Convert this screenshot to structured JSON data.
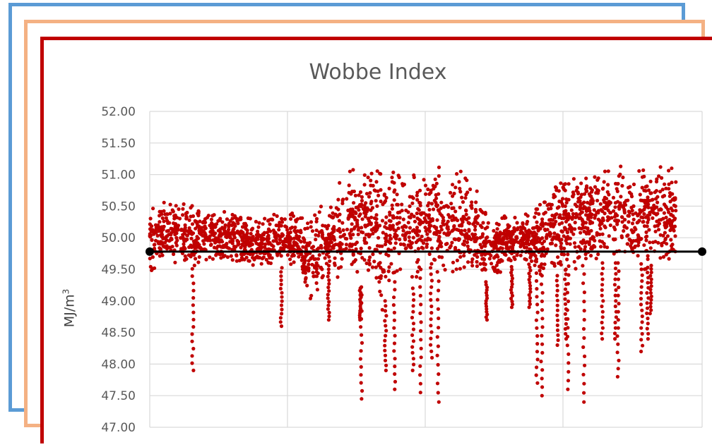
{
  "colors": {
    "frame_back": "#5b9bd5",
    "frame_middle": "#f4b183",
    "frame_front": "#c00000",
    "points": "#c00000",
    "reference_line": "#000000",
    "grid": "#d9d9d9",
    "text": "#595959"
  },
  "chart_data": {
    "type": "scatter",
    "title": "Wobbe Index",
    "ylabel": "MJ/m",
    "ylabel_superscript": "3",
    "ylim": [
      47.0,
      52.0
    ],
    "yticks": [
      "52.00",
      "51.50",
      "51.00",
      "50.50",
      "50.00",
      "49.50",
      "49.00",
      "48.50",
      "48.00",
      "47.50",
      "47.00"
    ],
    "x_tick_labels": [],
    "grid": true,
    "legend": "none",
    "reference_line": {
      "y": 49.78
    },
    "series": [
      {
        "marker": "circle",
        "color": "#c00000",
        "band_profile": {
          "x": [
            0.0,
            0.04,
            0.08,
            0.12,
            0.16,
            0.2,
            0.24,
            0.28,
            0.3,
            0.32,
            0.34,
            0.36,
            0.38,
            0.4,
            0.42,
            0.44,
            0.46,
            0.48,
            0.5,
            0.52,
            0.54,
            0.56,
            0.58,
            0.6,
            0.62,
            0.64,
            0.66,
            0.68,
            0.7,
            0.72,
            0.74,
            0.76,
            0.78,
            0.8,
            0.82,
            0.84,
            0.86,
            0.88,
            0.9,
            0.92,
            0.94,
            0.96,
            0.98,
            1.0
          ],
          "low": [
            49.4,
            49.6,
            49.5,
            49.65,
            49.6,
            49.5,
            49.5,
            49.6,
            49.0,
            49.0,
            49.5,
            49.2,
            49.5,
            49.2,
            49.4,
            48.8,
            49.3,
            49.3,
            49.2,
            49.6,
            49.5,
            49.4,
            49.4,
            49.3,
            49.5,
            49.3,
            49.4,
            49.5,
            49.6,
            49.6,
            49.4,
            49.4,
            49.4,
            49.6,
            49.4,
            49.5,
            49.6,
            49.6,
            49.6,
            49.5,
            49.5,
            49.6,
            49.5,
            49.5
          ],
          "high": [
            50.5,
            50.6,
            50.5,
            50.4,
            50.4,
            50.3,
            50.4,
            50.4,
            50.3,
            50.6,
            50.4,
            50.9,
            51.1,
            51.1,
            51.1,
            51.1,
            51.0,
            51.1,
            51.1,
            51.0,
            51.1,
            51.1,
            51.1,
            51.1,
            50.8,
            50.4,
            50.4,
            50.4,
            50.3,
            50.4,
            50.6,
            50.7,
            51.0,
            51.1,
            51.1,
            51.0,
            51.1,
            51.1,
            51.2,
            51.1,
            51.2,
            51.2,
            51.2,
            51.1
          ]
        },
        "downward_spikes": [
          {
            "x": 0.082,
            "low": 47.9
          },
          {
            "x": 0.25,
            "low": 48.6
          },
          {
            "x": 0.34,
            "low": 48.7
          },
          {
            "x": 0.4,
            "low": 48.7
          },
          {
            "x": 0.402,
            "low": 47.45
          },
          {
            "x": 0.448,
            "low": 47.9
          },
          {
            "x": 0.465,
            "low": 47.6
          },
          {
            "x": 0.5,
            "low": 47.9
          },
          {
            "x": 0.515,
            "low": 47.55
          },
          {
            "x": 0.535,
            "low": 48.1
          },
          {
            "x": 0.548,
            "low": 47.4
          },
          {
            "x": 0.64,
            "low": 48.7
          },
          {
            "x": 0.688,
            "low": 48.9
          },
          {
            "x": 0.722,
            "low": 48.9
          },
          {
            "x": 0.736,
            "low": 47.7
          },
          {
            "x": 0.745,
            "low": 47.5
          },
          {
            "x": 0.775,
            "low": 48.3
          },
          {
            "x": 0.79,
            "low": 48.4
          },
          {
            "x": 0.795,
            "low": 47.6
          },
          {
            "x": 0.825,
            "low": 47.4
          },
          {
            "x": 0.86,
            "low": 48.4
          },
          {
            "x": 0.885,
            "low": 48.4
          },
          {
            "x": 0.89,
            "low": 47.8
          },
          {
            "x": 0.935,
            "low": 48.2
          },
          {
            "x": 0.946,
            "low": 48.4
          },
          {
            "x": 0.952,
            "low": 48.8
          }
        ]
      }
    ]
  }
}
